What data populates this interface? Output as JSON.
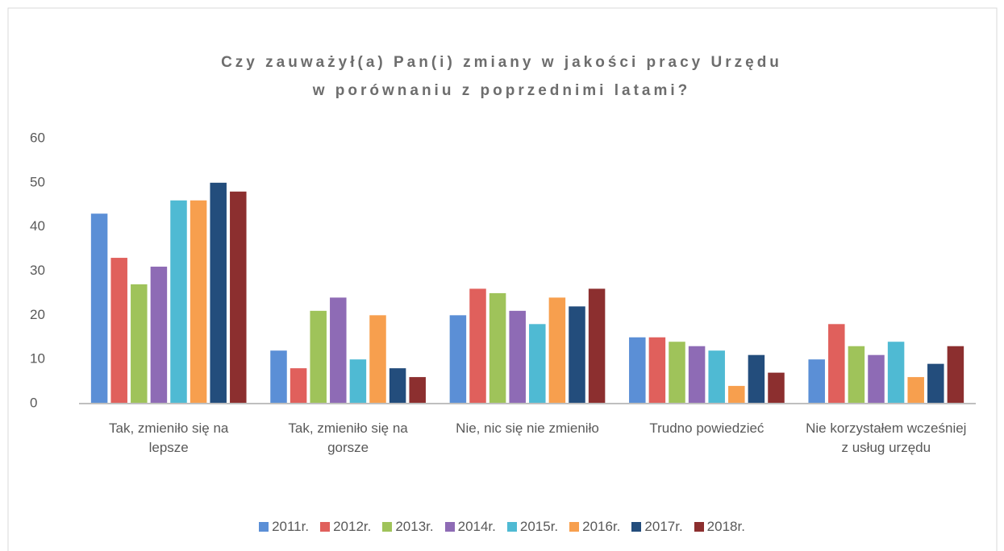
{
  "chart_data": {
    "type": "bar",
    "title": [
      "Czy zauważył(a) Pan(i) zmiany w jakości pracy Urzędu",
      "w porównaniu z poprzednimi latami?"
    ],
    "categories": [
      "Tak, zmieniło się na lepsze",
      "Tak, zmieniło się na gorsze",
      "Nie, nic się nie zmieniło",
      "Trudno powiedzieć",
      "Nie korzystałem wcześniej z usług urzędu"
    ],
    "series": [
      {
        "name": "2011r.",
        "color": "#5b8fd6",
        "values": [
          43,
          12,
          20,
          15,
          10
        ]
      },
      {
        "name": "2012r.",
        "color": "#e0605c",
        "values": [
          33,
          8,
          26,
          15,
          18
        ]
      },
      {
        "name": "2013r.",
        "color": "#9fc35a",
        "values": [
          27,
          21,
          25,
          14,
          13
        ]
      },
      {
        "name": "2014r.",
        "color": "#8e6bb5",
        "values": [
          31,
          24,
          21,
          13,
          11
        ]
      },
      {
        "name": "2015r.",
        "color": "#4fbad3",
        "values": [
          46,
          10,
          18,
          12,
          14
        ]
      },
      {
        "name": "2016r.",
        "color": "#f79f4e",
        "values": [
          46,
          20,
          24,
          4,
          6
        ]
      },
      {
        "name": "2017r.",
        "color": "#234d7c",
        "values": [
          50,
          8,
          22,
          11,
          9
        ]
      },
      {
        "name": "2018r.",
        "color": "#8c2f2f",
        "values": [
          48,
          6,
          26,
          7,
          13
        ]
      }
    ],
    "ylim": [
      0,
      60
    ],
    "yticks": [
      0,
      10,
      20,
      30,
      40,
      50,
      60
    ],
    "legend": "bottom"
  }
}
